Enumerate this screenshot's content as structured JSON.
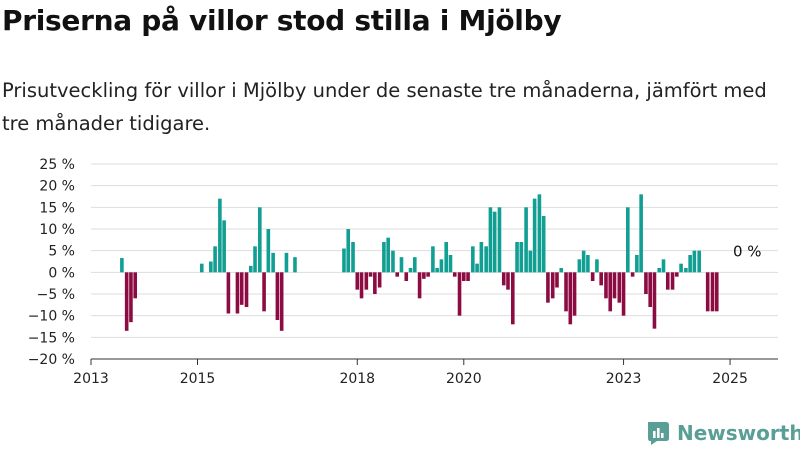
{
  "title": "Priserna på villor stod stilla i Mjölby",
  "subtitle": "Prisutveckling för villor i Mjölby under de senaste tre månaderna, jämfört med tre månader tidigare.",
  "brand": {
    "name": "Newsworthy",
    "logo_icon": "newsworthy-logo-icon"
  },
  "colors": {
    "positive": "#119e93",
    "negative": "#8c0b42",
    "grid": "#dddddd",
    "axis": "#333333"
  },
  "chart_data": {
    "type": "bar",
    "title": "Priserna på villor stod stilla i Mjölby",
    "subtitle": "Prisutveckling för villor i Mjölby under de senaste tre månaderna, jämfört med tre månader tidigare.",
    "xlabel": "",
    "ylabel": "",
    "unit": "%",
    "ylim": [
      -20,
      25
    ],
    "yticks": [
      25,
      20,
      15,
      10,
      5,
      0,
      -5,
      -10,
      -15,
      -20
    ],
    "ytick_labels": [
      "25 %",
      "20 %",
      "15 %",
      "10 %",
      "5 %",
      "0 %",
      "−5 %",
      "−10 %",
      "−15 %",
      "−20 %"
    ],
    "xlim": [
      2013.0,
      2025.9
    ],
    "xticks": [
      2013,
      2015,
      2018,
      2020,
      2023,
      2025
    ],
    "xtick_labels": [
      "2013",
      "2015",
      "2018",
      "2020",
      "2023",
      "2025"
    ],
    "grid": true,
    "last_value_label": "0 %",
    "x": [
      2013.58,
      2013.67,
      2013.75,
      2013.83,
      2015.08,
      2015.25,
      2015.33,
      2015.42,
      2015.5,
      2015.58,
      2015.75,
      2015.83,
      2015.92,
      2016.0,
      2016.08,
      2016.17,
      2016.25,
      2016.33,
      2016.42,
      2016.5,
      2016.58,
      2016.67,
      2016.83,
      2017.75,
      2017.83,
      2017.92,
      2018.0,
      2018.08,
      2018.17,
      2018.25,
      2018.33,
      2018.42,
      2018.5,
      2018.58,
      2018.67,
      2018.75,
      2018.83,
      2018.92,
      2019.0,
      2019.08,
      2019.17,
      2019.25,
      2019.33,
      2019.42,
      2019.5,
      2019.58,
      2019.67,
      2019.75,
      2019.83,
      2019.92,
      2020.0,
      2020.08,
      2020.17,
      2020.25,
      2020.33,
      2020.42,
      2020.5,
      2020.58,
      2020.67,
      2020.75,
      2020.83,
      2020.92,
      2021.0,
      2021.08,
      2021.17,
      2021.25,
      2021.33,
      2021.42,
      2021.5,
      2021.58,
      2021.67,
      2021.75,
      2021.83,
      2021.92,
      2022.0,
      2022.08,
      2022.17,
      2022.25,
      2022.33,
      2022.42,
      2022.5,
      2022.58,
      2022.67,
      2022.75,
      2022.83,
      2022.92,
      2023.0,
      2023.08,
      2023.17,
      2023.25,
      2023.33,
      2023.42,
      2023.5,
      2023.58,
      2023.67,
      2023.75,
      2023.83,
      2023.92,
      2024.0,
      2024.08,
      2024.17,
      2024.25,
      2024.33,
      2024.42,
      2024.5,
      2024.58,
      2024.67,
      2024.75,
      2024.83
    ],
    "values": [
      3.3,
      -13.5,
      -11.5,
      -6.0,
      2.0,
      2.5,
      6.0,
      17.0,
      12.0,
      -9.5,
      -9.5,
      -7.5,
      -8.0,
      1.5,
      6.0,
      15.0,
      -9.0,
      10.0,
      4.5,
      -11.0,
      -13.5,
      4.5,
      3.5,
      5.5,
      10.0,
      7.0,
      -4.0,
      -6.0,
      -4.0,
      -1.0,
      -5.0,
      -3.5,
      7.0,
      8.0,
      5.0,
      -1.0,
      3.5,
      -2.0,
      1.0,
      3.5,
      -6.0,
      -1.5,
      -1.0,
      6.0,
      1.0,
      3.0,
      7.0,
      4.0,
      -1.0,
      -10.0,
      -2.0,
      -2.0,
      6.0,
      2.0,
      7.0,
      6.0,
      15.0,
      14.0,
      15.0,
      -3.0,
      -4.0,
      -12.0,
      7.0,
      7.0,
      15.0,
      5.0,
      17.0,
      18.0,
      13.0,
      -7.0,
      -6.0,
      -3.5,
      1.0,
      -9.0,
      -12.0,
      -10.0,
      3.0,
      5.0,
      4.0,
      -2.0,
      3.0,
      -3.0,
      -6.0,
      -9.0,
      -6.0,
      -7.0,
      -10.0,
      15.0,
      -1.0,
      4.0,
      18.0,
      -5.0,
      -8.0,
      -13.0,
      1.0,
      3.0,
      -4.0,
      -4.0,
      -1.0,
      2.0,
      1.0,
      4.0,
      5.0,
      5.0,
      0.0,
      -9.0,
      -9.0,
      -9.0,
      0.0
    ]
  }
}
